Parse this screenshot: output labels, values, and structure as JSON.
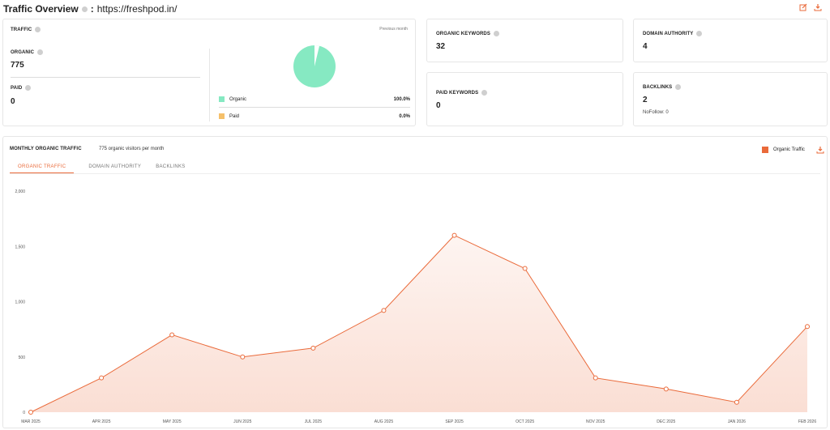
{
  "header": {
    "title": "Traffic Overview",
    "separator": ":",
    "domain": "https://freshpod.in/",
    "icons": [
      "edit-icon",
      "download-icon"
    ]
  },
  "traffic_card": {
    "title": "TRAFFIC",
    "previous_month": "Previous month",
    "organic_label": "ORGANIC",
    "organic_value": "775",
    "paid_label": "PAID",
    "paid_value": "0",
    "legend": [
      {
        "name": "Organic",
        "percent": "100.0%",
        "color": "#86e9c2"
      },
      {
        "name": "Paid",
        "percent": "0.0%",
        "color": "#f5c06a"
      }
    ]
  },
  "organic_keywords": {
    "label": "ORGANIC KEYWORDS",
    "value": "32"
  },
  "paid_keywords": {
    "label": "PAID KEYWORDS",
    "value": "0"
  },
  "domain_authority": {
    "label": "DOMAIN AUTHORITY",
    "value": "4"
  },
  "backlinks": {
    "label": "BACKLINKS",
    "value": "2",
    "nofollow": "NoFollow: 0"
  },
  "monthly": {
    "title": "MONTHLY ORGANIC TRAFFIC",
    "subtitle": "775 organic visitors per month",
    "legend_label": "Organic Traffic",
    "tabs": [
      "ORGANIC TRAFFIC",
      "DOMAIN AUTHORITY",
      "BACKLINKS"
    ],
    "accent": "#ea6a3a"
  },
  "chart_data": {
    "type": "area",
    "x": [
      "MAR 2025",
      "APR 2025",
      "MAY 2025",
      "JUN 2025",
      "JUL 2025",
      "AUG 2025",
      "SEP 2025",
      "OCT 2025",
      "NOV 2025",
      "DEC 2025",
      "JAN 2026",
      "FEB 2026"
    ],
    "series": [
      {
        "name": "Organic Traffic",
        "values": [
          0,
          310,
          700,
          500,
          580,
          920,
          1600,
          1300,
          310,
          210,
          90,
          775
        ]
      }
    ],
    "yticks": [
      "0",
      "500",
      "1,000",
      "1,500",
      "2,000"
    ],
    "ylim": [
      0,
      2000
    ],
    "grid": false,
    "legend": "top-right"
  }
}
